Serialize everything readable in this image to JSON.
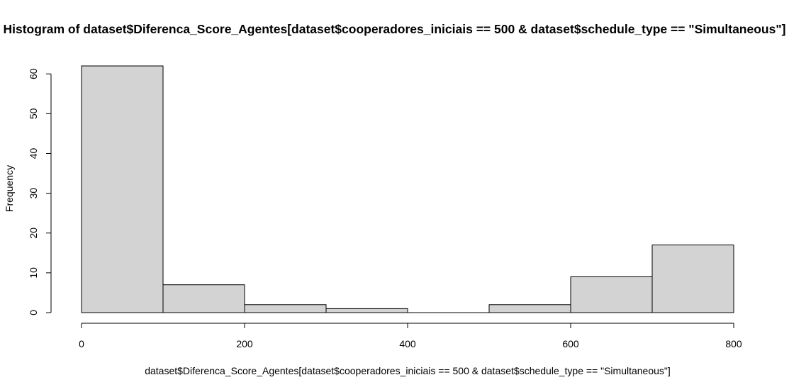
{
  "chart_data": {
    "type": "bar",
    "title": "Histogram of dataset$Diferenca_Score_Agentes[dataset$cooperadores_iniciais == 500 & dataset$schedule_type == \"Simultaneous\"]",
    "xlabel": "dataset$Diferenca_Score_Agentes[dataset$cooperadores_iniciais == 500 & dataset$schedule_type == \"Simultaneous\"]",
    "ylabel": "Frequency",
    "bins": [
      {
        "start": 0,
        "end": 100,
        "count": 62
      },
      {
        "start": 100,
        "end": 200,
        "count": 7
      },
      {
        "start": 200,
        "end": 300,
        "count": 2
      },
      {
        "start": 300,
        "end": 400,
        "count": 1
      },
      {
        "start": 400,
        "end": 500,
        "count": 0
      },
      {
        "start": 500,
        "end": 600,
        "count": 2
      },
      {
        "start": 600,
        "end": 700,
        "count": 9
      },
      {
        "start": 700,
        "end": 800,
        "count": 17
      }
    ],
    "xlim": [
      0,
      800
    ],
    "ylim": [
      0,
      62
    ],
    "xticks": [
      0,
      200,
      400,
      600,
      800
    ],
    "yticks": [
      0,
      10,
      20,
      30,
      40,
      50,
      60
    ],
    "grid": false,
    "colors": {
      "bar_fill": "#d3d3d3",
      "bar_stroke": "#000000"
    }
  }
}
